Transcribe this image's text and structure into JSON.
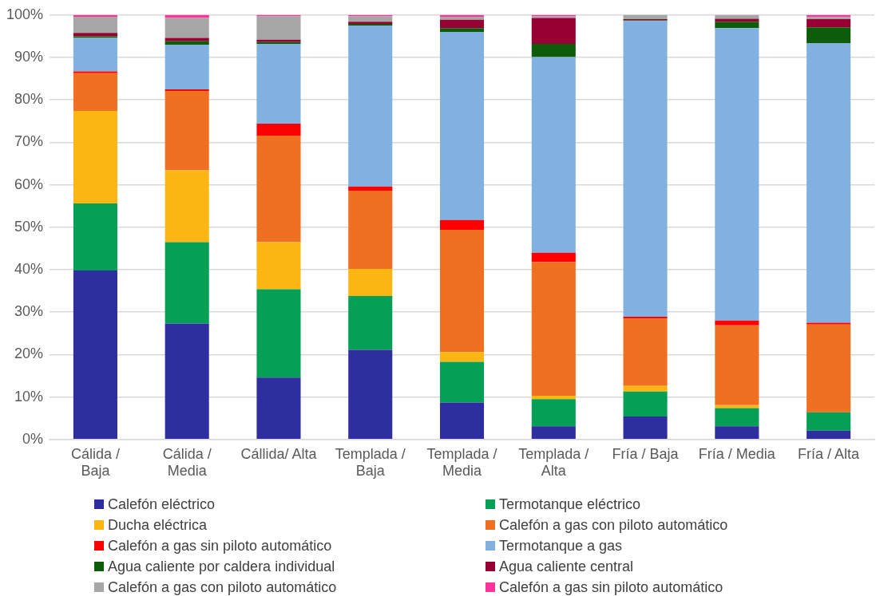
{
  "chart_data": {
    "type": "bar",
    "stacked": true,
    "legend": "bottom",
    "grid": "y",
    "categories": [
      "Cálida / Baja",
      "Cálida / Media",
      "Cállida/ Alta",
      "Templada / Baja",
      "Templada / Media",
      "Templada / Alta",
      "Fría / Baja",
      "Fría  / Media",
      "Fría  / Alta"
    ],
    "ylim": [
      0,
      100
    ],
    "yticks": [
      {
        "value": 0,
        "label": "0%"
      },
      {
        "value": 10,
        "label": "10%"
      },
      {
        "value": 20,
        "label": "20%"
      },
      {
        "value": 30,
        "label": "30%"
      },
      {
        "value": 40,
        "label": "40%"
      },
      {
        "value": 50,
        "label": "50%"
      },
      {
        "value": 60,
        "label": "60%"
      },
      {
        "value": 70,
        "label": "70%"
      },
      {
        "value": 80,
        "label": "80%"
      },
      {
        "value": 90,
        "label": "90%"
      },
      {
        "value": 100,
        "label": "100%"
      }
    ],
    "series": [
      {
        "name": "Calefón eléctrico",
        "color": "#2e2ea0",
        "values": [
          39.8,
          27.3,
          14.6,
          21.1,
          8.7,
          3.1,
          5.4,
          3.1,
          2.1
        ]
      },
      {
        "name": "Termotanque eléctrico",
        "color": "#05a055",
        "values": [
          15.8,
          19.2,
          20.8,
          12.7,
          9.6,
          6.4,
          5.9,
          4.3,
          4.3
        ]
      },
      {
        "name": "Ducha eléctrica",
        "color": "#fbb614",
        "values": [
          21.8,
          16.9,
          11.1,
          6.4,
          2.3,
          0.8,
          1.3,
          0.7,
          0
        ]
      },
      {
        "name": "Calefón a gas con piloto automático",
        "color": "#f07022",
        "values": [
          8.9,
          18.7,
          25.1,
          18.4,
          28.8,
          31.5,
          15.9,
          18.8,
          20.7
        ]
      },
      {
        "name": "Calefón a gas sin piloto automático",
        "color": "#ff0000",
        "values": [
          0.4,
          0.4,
          2.8,
          1.0,
          2.3,
          2.2,
          0.4,
          1.1,
          0.4
        ]
      },
      {
        "name": "Termotanque a gas",
        "color": "#80b1e0",
        "values": [
          7.9,
          10.5,
          18.8,
          37.9,
          44.3,
          46.1,
          69.7,
          68.9,
          65.9
        ]
      },
      {
        "name": "Agua caliente por caldera individual",
        "color": "#0c5c0a",
        "values": [
          0.4,
          0.8,
          0.4,
          0.4,
          0.9,
          3.1,
          0.2,
          1.5,
          3.7
        ]
      },
      {
        "name": "Agua caliente central",
        "color": "#960032",
        "values": [
          0.8,
          0.8,
          0.6,
          0.5,
          2.0,
          6.1,
          0.2,
          0.7,
          1.9
        ]
      },
      {
        "name": "Calefón a gas con piloto automático",
        "color": "#a6a6a6",
        "values": [
          3.8,
          4.7,
          5.5,
          1.3,
          0.7,
          0.4,
          1.0,
          0.9,
          0.5
        ]
      },
      {
        "name": "Calefón a gas sin piloto automático",
        "color": "#ff3399",
        "values": [
          0.4,
          0.7,
          0.3,
          0.3,
          0.4,
          0.3,
          0,
          0,
          0.5
        ]
      }
    ]
  }
}
